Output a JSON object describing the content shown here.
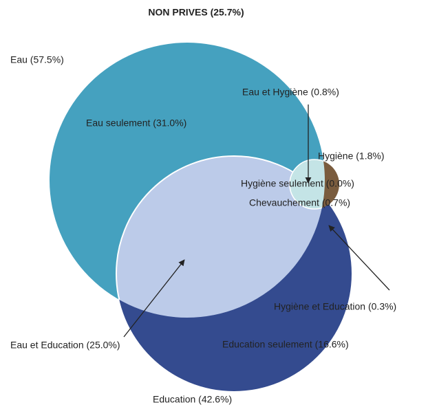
{
  "title": "NON PRIVES (25.7%)",
  "labels": {
    "eau": "Eau (57.5%)",
    "eau_seulement": "Eau seulement (31.0%)",
    "eau_hygiene": "Eau et Hygiène (0.8%)",
    "hygiene": "Hygiène (1.8%)",
    "hygiene_seulement": "Hygiène seulement (0.0%)",
    "chevauchement": "Chevauchement (0.7%)",
    "hygiene_education": "Hygiène et Education (0.3%)",
    "eau_education": "Eau et Education (25.0%)",
    "education_seulement": "Education seulement (16.6%)",
    "education": "Education (42.6%)"
  }
}
